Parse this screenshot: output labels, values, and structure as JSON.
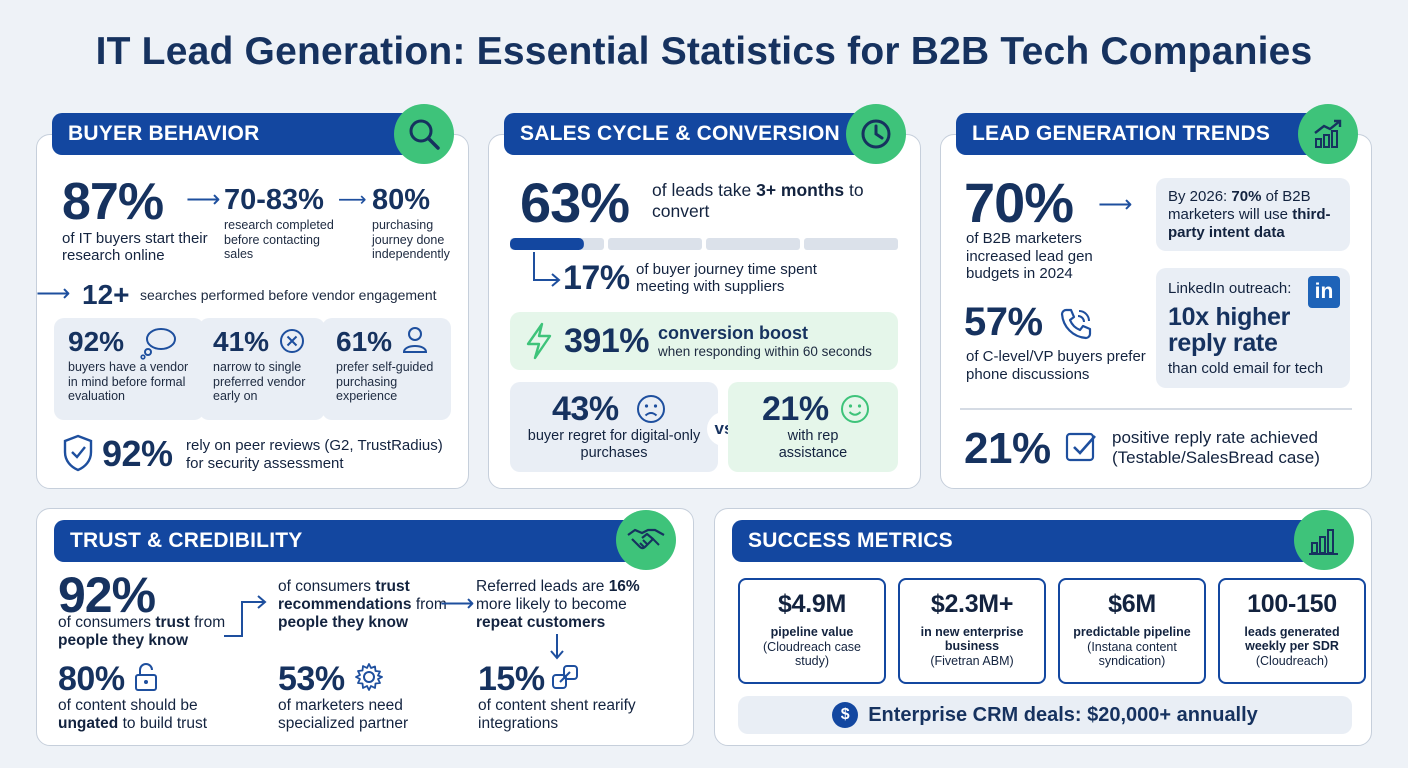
{
  "title": "IT Lead Generation: Essential Statistics for B2B Tech Companies",
  "buyer": {
    "header": "BUYER BEHAVIOR",
    "s1_value": "87%",
    "s1_label": "of IT buyers start their research online",
    "s2_value": "70-83%",
    "s2_label": "research completed before contacting sales",
    "s3_value": "80%",
    "s3_label": "purchasing journey done independently",
    "s4_value": "12+",
    "s4_label": "searches performed before vendor engagement",
    "c1_value": "92%",
    "c1_label": "buyers have a vendor in mind before formal evaluation",
    "c2_value": "41%",
    "c2_label": "narrow to single preferred vendor early on",
    "c3_value": "61%",
    "c3_label": "prefer self-guided purchasing experience",
    "s5_value": "92%",
    "s5_label": "rely on peer reviews (G2, TrustRadius) for security assessment"
  },
  "sales": {
    "header": "SALES CYCLE & CONVERSION",
    "s1_value": "63%",
    "s1_pre": "of leads take ",
    "s1_bold": "3+ months",
    "s1_post": " to convert",
    "progress": 0.17,
    "s2_value": "17%",
    "s2_label": "of buyer journey time spent meeting with suppliers",
    "s3_value": "391%",
    "s3_title": "conversion boost",
    "s3_label": "when responding within 60 seconds",
    "s4_value": "43%",
    "s4_label": "buyer regret for digital-only purchases",
    "vs": "vs",
    "s5_value": "21%",
    "s5_label": "with rep assistance"
  },
  "trends": {
    "header": "LEAD GENERATION TRENDS",
    "s1_value": "70%",
    "s1_label": "of B2B marketers increased lead gen budgets in 2024",
    "box1_pre": "By 2026: ",
    "box1_bold1": "70%",
    "box1_mid": " of B2B marketers will use ",
    "box1_bold2": "third-party intent data",
    "s2_value": "57%",
    "s2_label": "of C-level/VP buyers prefer phone discussions",
    "box2_title": "LinkedIn outreach:",
    "box2_big": "10x higher reply rate",
    "box2_label": "than cold email for tech",
    "linkedin": "in",
    "s3_value": "21%",
    "s3_label": "positive reply rate achieved (Testable/SalesBread case)"
  },
  "trust": {
    "header": "TRUST & CREDIBILITY",
    "s1_value": "92%",
    "s1_pre": "of consumers ",
    "s1_b1": "trust",
    "s1_mid": " from ",
    "s1_b2": "people they know",
    "s2_pre": "of consumers ",
    "s2_b1": "trust recommendations",
    "s2_mid": " from ",
    "s2_b2": "people they know",
    "s3_pre": "Referred leads are ",
    "s3_b1": "16%",
    "s3_mid": " more likely to become ",
    "s3_b2": "repeat customers",
    "s4_value": "80%",
    "s4_pre": "of content should be ",
    "s4_b": "ungated",
    "s4_post": " to build trust",
    "s5_value": "53%",
    "s5_label": "of marketers need specialized partner",
    "s6_value": "15%",
    "s6_label": "of content shent rearify integrations"
  },
  "metrics": {
    "header": "SUCCESS METRICS",
    "cards": [
      {
        "value": "$4.9M",
        "bold": "pipeline value",
        "sub": "(Cloudreach case study)"
      },
      {
        "value": "$2.3M+",
        "bold": "in new enterprise business",
        "sub": "(Fivetran ABM)"
      },
      {
        "value": "$6M",
        "bold": "predictable pipeline",
        "sub": "(Instana content syndication)"
      },
      {
        "value": "100-150",
        "bold": "leads generated weekly per SDR",
        "sub": "(Cloudreach)"
      }
    ],
    "bottom": "Enterprise CRM deals: $20,000+ annually",
    "dollar": "$"
  },
  "colors": {
    "navy": "#1347a0",
    "green": "#3ec37a",
    "text": "#16325f"
  }
}
